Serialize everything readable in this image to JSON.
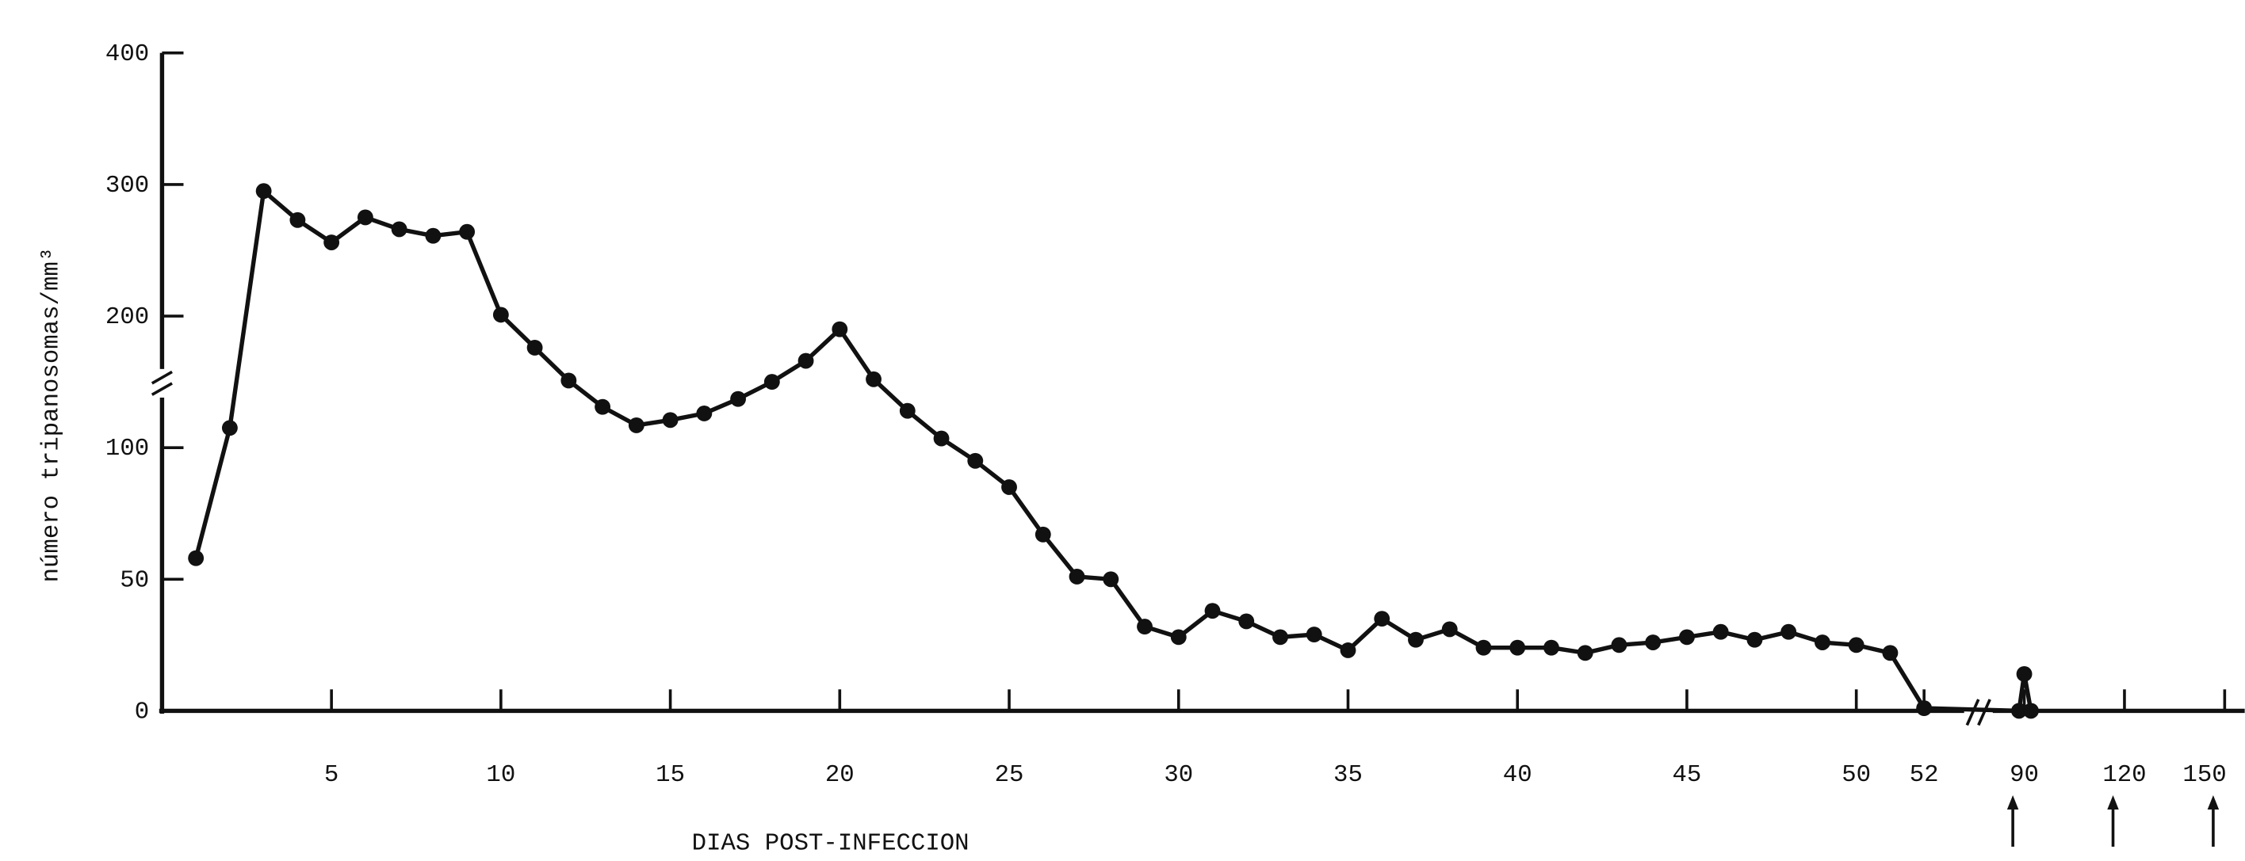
{
  "chart_data": {
    "type": "line",
    "y_label": "número tripanosomas/mm³",
    "x_label": "DIAS POST-INFECCION",
    "x": [
      1,
      2,
      3,
      4,
      5,
      6,
      7,
      8,
      9,
      10,
      11,
      12,
      13,
      14,
      15,
      16,
      17,
      18,
      19,
      20,
      21,
      22,
      23,
      24,
      25,
      26,
      27,
      28,
      29,
      30,
      31,
      32,
      33,
      34,
      35,
      36,
      37,
      38,
      39,
      40,
      41,
      42,
      43,
      44,
      45,
      46,
      47,
      48,
      49,
      50,
      51,
      52,
      88,
      90,
      92
    ],
    "series": [
      {
        "color": "#111111",
        "values": [
          58,
          115,
          295,
          273,
          256,
          275,
          266,
          261,
          264,
          201,
          176,
          151,
          131,
          117,
          121,
          126,
          137,
          150,
          166,
          190,
          152,
          128,
          107,
          95,
          85,
          67,
          51,
          50,
          32,
          28,
          38,
          34,
          28,
          29,
          23,
          35,
          27,
          31,
          24,
          24,
          24,
          22,
          25,
          26,
          28,
          30,
          27,
          30,
          26,
          25,
          22,
          1,
          0,
          14,
          0
        ]
      }
    ],
    "xlim": [
      0,
      150
    ],
    "xticks": [
      5,
      10,
      15,
      20,
      25,
      30,
      35,
      40,
      45,
      50,
      52,
      90,
      120,
      150
    ],
    "ylim": [
      0,
      400
    ],
    "yticks": [
      0,
      50,
      100,
      200,
      300,
      400
    ],
    "grid": false
  }
}
